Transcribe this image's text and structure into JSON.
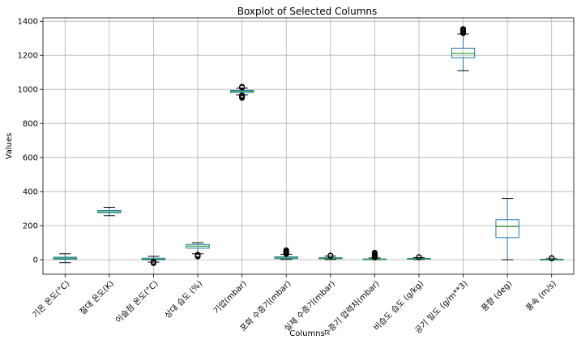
{
  "chart_data": {
    "type": "boxplot",
    "title": "Boxplot of Selected Columns",
    "xlabel": "Columns",
    "ylabel": "Values",
    "ylim": [
      -85,
      1420
    ],
    "yticks": [
      0,
      200,
      400,
      600,
      800,
      1000,
      1200,
      1400
    ],
    "grid": true,
    "colors": {
      "box": "#1f77b4",
      "median": "#2ca02c",
      "grid": "#b0b0b0",
      "flier": "#000000"
    },
    "boxes": [
      {
        "name": "기온 온도(°C)",
        "whislo": -17,
        "q1": 3,
        "med": 9,
        "q3": 15,
        "whishi": 35,
        "fliers": []
      },
      {
        "name": "절대 온도(K)",
        "whislo": 259,
        "q1": 276,
        "med": 282,
        "q3": 289,
        "whishi": 308,
        "fliers": []
      },
      {
        "name": "이슬점 온도(°C)",
        "whislo": -14,
        "q1": -1,
        "med": 4,
        "q3": 9,
        "whishi": 20,
        "fliers": [
          -11,
          -13,
          -14,
          -16,
          -18,
          -20
        ]
      },
      {
        "name": "상대 습도 (%)",
        "whislo": 35,
        "q1": 68,
        "med": 80,
        "q3": 90,
        "whishi": 100,
        "fliers": [
          30,
          26,
          22,
          19
        ]
      },
      {
        "name": "기압(mbar)",
        "whislo": 968,
        "q1": 982,
        "med": 988,
        "q3": 994,
        "whishi": 1008,
        "fliers": [
          1010,
          1013,
          1016,
          965,
          960,
          955,
          950
        ]
      },
      {
        "name": "포화 수증기(mbar)",
        "whislo": 2,
        "q1": 7,
        "med": 11,
        "q3": 17,
        "whishi": 32,
        "fliers": [
          34,
          37,
          40,
          44,
          48,
          52,
          56
        ]
      },
      {
        "name": "실제 수증기(mbar)",
        "whislo": 1,
        "q1": 6,
        "med": 8,
        "q3": 12,
        "whishi": 21,
        "fliers": [
          22,
          24,
          25
        ]
      },
      {
        "name": "수증기 압력차(mbar)",
        "whislo": 0,
        "q1": 1,
        "med": 2,
        "q3": 5,
        "whishi": 11,
        "fliers": [
          13,
          16,
          20,
          24,
          28,
          33,
          38,
          42
        ]
      },
      {
        "name": "비습도 습도 (g/kg)",
        "whislo": 1,
        "q1": 4,
        "med": 5,
        "q3": 8,
        "whishi": 13,
        "fliers": [
          14,
          15,
          16
        ]
      },
      {
        "name": "공기 밀도 (g/m**3)",
        "whislo": 1110,
        "q1": 1186,
        "med": 1212,
        "q3": 1242,
        "whishi": 1325,
        "fliers": [
          1330,
          1335,
          1340,
          1345,
          1350,
          1355
        ]
      },
      {
        "name": "풍향 (deg)",
        "whislo": 0,
        "q1": 130,
        "med": 195,
        "q3": 235,
        "whishi": 360,
        "fliers": []
      },
      {
        "name": "풍속 (m/s)",
        "whislo": 0,
        "q1": 1,
        "med": 2,
        "q3": 3,
        "whishi": 6,
        "fliers": [
          7,
          8,
          9,
          10
        ]
      }
    ]
  }
}
